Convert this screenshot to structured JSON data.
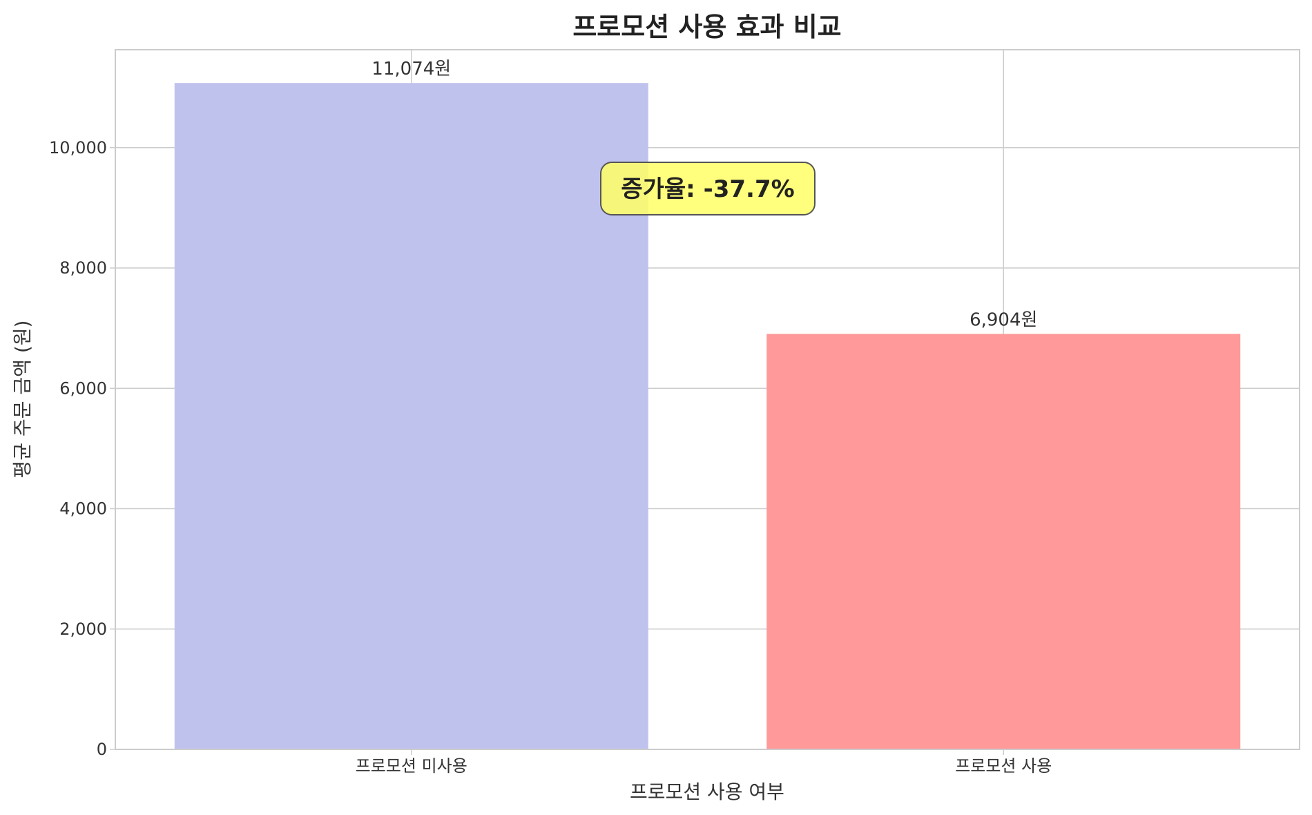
{
  "chart_data": {
    "type": "bar",
    "title": "프로모션 사용 효과 비교",
    "xlabel": "프로모션 사용 여부",
    "ylabel": "평균 주문 금액 (원)",
    "categories": [
      "프로모션 미사용",
      "프로모션 사용"
    ],
    "values": [
      11074,
      6904
    ],
    "value_labels": [
      "11,074원",
      "6,904원"
    ],
    "bar_colors": [
      "#c0c2ee",
      "#ff999a"
    ],
    "ylim": [
      0,
      11627
    ],
    "yticks": [
      0,
      2000,
      4000,
      6000,
      8000,
      10000
    ],
    "ytick_labels": [
      "0",
      "2,000",
      "4,000",
      "6,000",
      "8,000",
      "10,000"
    ],
    "grid": true,
    "annotation": {
      "text": "증가율: -37.7%",
      "value": -37.7,
      "background": "#ffff66"
    }
  },
  "colors": {
    "grid": "#cccccc",
    "spine": "#cccccc",
    "text": "#333333"
  }
}
